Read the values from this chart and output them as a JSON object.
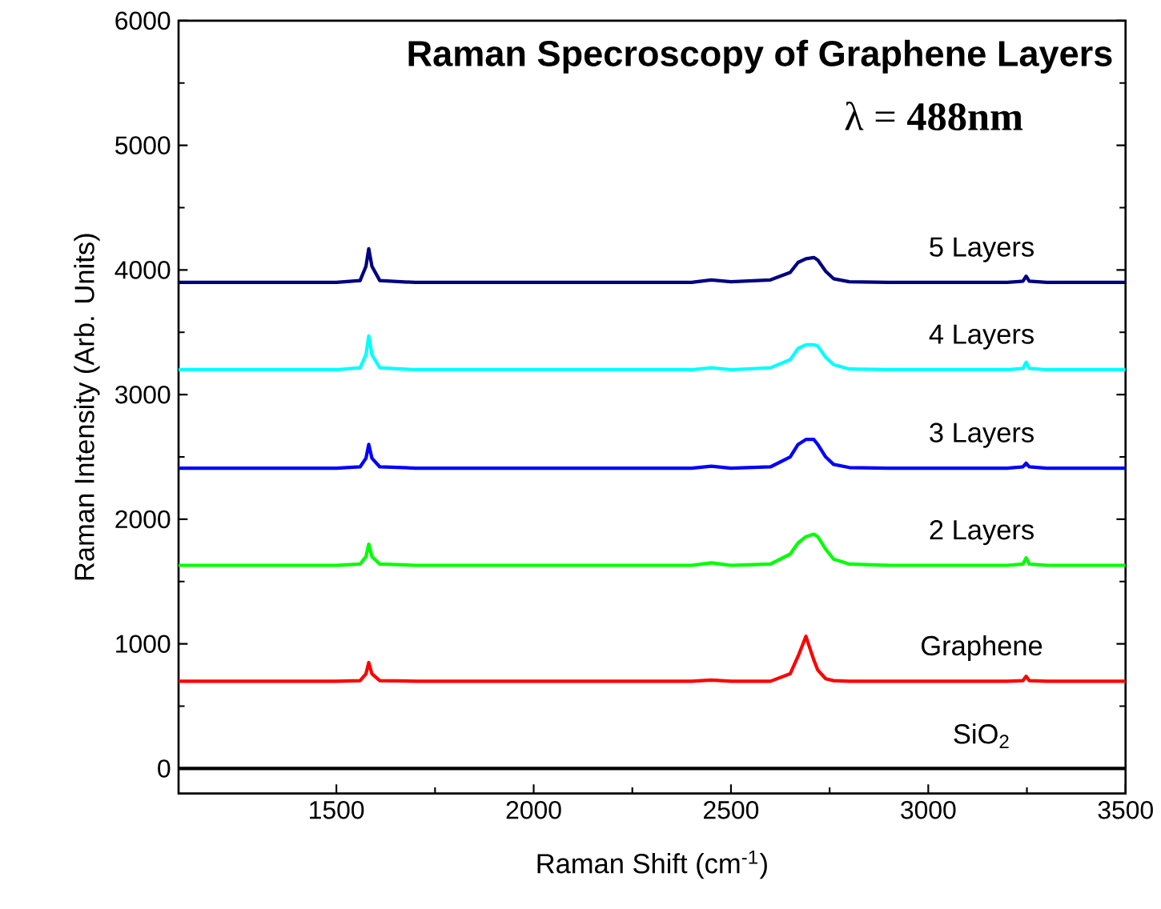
{
  "chart_data": {
    "type": "line",
    "title": "Raman Specroscopy of Graphene Layers",
    "xlabel": "Raman Shift (cm$^{-1}$)",
    "ylabel": "Raman  Intensity (Arb. Units)",
    "annotations": [
      "λ = **488nm**"
    ],
    "x": [
      1100,
      1500,
      1560,
      1575,
      1582,
      1590,
      1610,
      1700,
      2000,
      2400,
      2450,
      2500,
      2600,
      2650,
      2670,
      2690,
      2710,
      2720,
      2740,
      2760,
      2800,
      2900,
      3200,
      3240,
      3248,
      3256,
      3300,
      3500
    ],
    "xlim": [
      1100,
      3500
    ],
    "xticks": [
      1500,
      2000,
      2500,
      3000,
      3500
    ],
    "ylim": [
      -200,
      6000
    ],
    "yticks": [
      0,
      1000,
      2000,
      3000,
      4000,
      5000,
      6000
    ],
    "grid": false,
    "legend": false,
    "marker": "none",
    "line_style": "solid",
    "series": [
      {
        "name": "SiO$_{2}$",
        "color": "#000000",
        "values": [
          0,
          0,
          0,
          0,
          0,
          0,
          0,
          0,
          0,
          0,
          0,
          0,
          0,
          0,
          0,
          0,
          0,
          0,
          0,
          0,
          0,
          0,
          0,
          0,
          0,
          0,
          0,
          0
        ]
      },
      {
        "name": "Graphene",
        "color": "#ff0000",
        "values": [
          700,
          700,
          705,
          760,
          850,
          760,
          705,
          700,
          700,
          700,
          710,
          700,
          700,
          760,
          900,
          1060,
          870,
          790,
          720,
          705,
          700,
          700,
          700,
          705,
          740,
          705,
          700,
          700
        ]
      },
      {
        "name": "2 Layers",
        "color": "#00ff00",
        "values": [
          1630,
          1630,
          1640,
          1700,
          1800,
          1700,
          1640,
          1630,
          1630,
          1630,
          1650,
          1630,
          1640,
          1720,
          1810,
          1860,
          1880,
          1860,
          1760,
          1680,
          1640,
          1630,
          1630,
          1640,
          1690,
          1640,
          1630,
          1630
        ]
      },
      {
        "name": "3 Layers",
        "color": "#0000ff",
        "values": [
          2410,
          2410,
          2420,
          2490,
          2600,
          2490,
          2420,
          2410,
          2410,
          2410,
          2425,
          2410,
          2420,
          2500,
          2600,
          2640,
          2640,
          2600,
          2500,
          2440,
          2415,
          2410,
          2410,
          2420,
          2450,
          2420,
          2410,
          2410
        ]
      },
      {
        "name": "4 Layers",
        "color": "#00ffff",
        "values": [
          3200,
          3200,
          3215,
          3320,
          3470,
          3320,
          3215,
          3200,
          3200,
          3200,
          3215,
          3200,
          3215,
          3280,
          3370,
          3400,
          3400,
          3390,
          3300,
          3240,
          3205,
          3200,
          3200,
          3210,
          3260,
          3210,
          3200,
          3200
        ]
      },
      {
        "name": "5 Layers",
        "color": "#000080",
        "values": [
          3900,
          3900,
          3915,
          4030,
          4170,
          4030,
          3915,
          3900,
          3900,
          3900,
          3920,
          3905,
          3920,
          3980,
          4060,
          4090,
          4100,
          4080,
          3990,
          3930,
          3905,
          3900,
          3900,
          3910,
          3950,
          3910,
          3900,
          3900
        ]
      }
    ]
  }
}
